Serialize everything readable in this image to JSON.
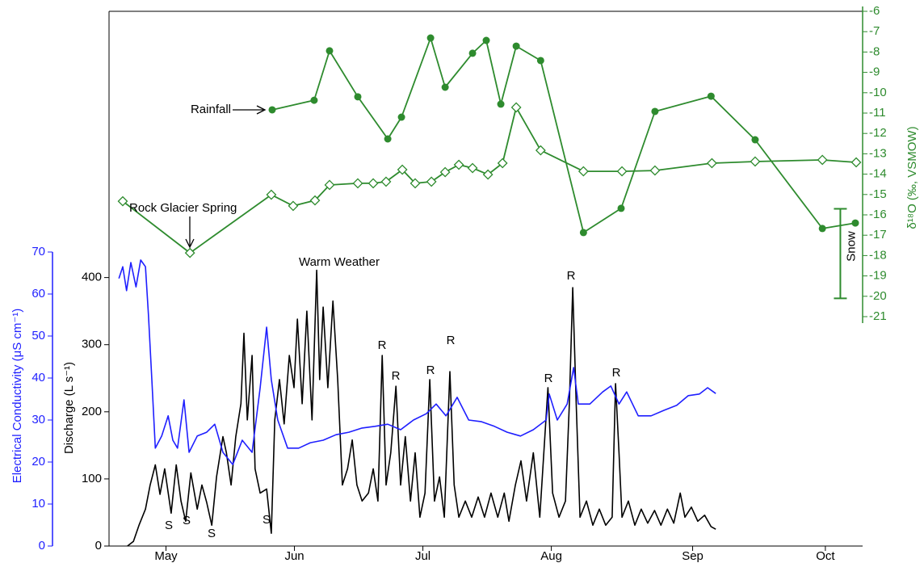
{
  "chart_data": {
    "type": "line",
    "xlim": [
      123.7,
      299.7
    ],
    "xticks": [
      {
        "value": 137,
        "label": "May"
      },
      {
        "value": 167,
        "label": "Jun"
      },
      {
        "value": 197,
        "label": "Jul"
      },
      {
        "value": 227,
        "label": "Aug"
      },
      {
        "value": 260,
        "label": "Sep"
      },
      {
        "value": 291,
        "label": "Oct"
      }
    ],
    "ylabel": "Discharge (L s⁻¹)",
    "ylim": [
      0,
      420
    ],
    "yticks": [
      0,
      100,
      200,
      300,
      400
    ],
    "y2label": "δ¹⁸O (‰, VSMOW)",
    "y2lim": [
      -21,
      -6
    ],
    "y2ticks": [
      -6,
      -7,
      -8,
      -9,
      -10,
      -11,
      -12,
      -13,
      -14,
      -15,
      -16,
      -17,
      -18,
      -19,
      -20,
      -21
    ],
    "y3label": "Electrical Conductivity (μS cm⁻¹)",
    "y3lim": [
      0,
      70
    ],
    "y3ticks": [
      0,
      10,
      20,
      30,
      40,
      50,
      60,
      70
    ],
    "series": [
      {
        "color": "#000000",
        "axis": "y",
        "x": [
          128.0,
          129.4,
          130.7,
          132.2,
          133.3,
          134.5,
          135.6,
          136.7,
          138.2,
          139.4,
          140.5,
          141.6,
          142.8,
          144.3,
          145.4,
          146.5,
          147.7,
          148.8,
          150.3,
          151.1,
          152.2,
          153.3,
          154.5,
          155.2,
          156.0,
          157.1,
          157.8,
          159.0,
          160.5,
          161.6,
          162.4,
          163.5,
          164.6,
          165.8,
          166.9,
          167.7,
          168.8,
          169.9,
          171.1,
          172.2,
          172.9,
          173.7,
          174.8,
          176.0,
          177.1,
          178.2,
          179.4,
          180.5,
          181.6,
          182.8,
          184.3,
          185.4,
          186.5,
          187.5,
          188.4,
          189.5,
          190.7,
          191.8,
          192.9,
          194.1,
          195.2,
          196.3,
          197.5,
          198.6,
          199.7,
          200.9,
          202.0,
          203.3,
          204.3,
          205.4,
          206.9,
          208.4,
          209.9,
          211.4,
          212.9,
          214.5,
          216.0,
          217.1,
          218.6,
          219.9,
          221.2,
          222.8,
          224.3,
          225.6,
          226.2,
          227.3,
          228.8,
          230.3,
          231.2,
          232.0,
          232.8,
          233.7,
          235.2,
          236.7,
          238.2,
          239.7,
          241.2,
          242.0,
          242.8,
          243.5,
          245.0,
          246.5,
          248.0,
          249.5,
          251.1,
          252.6,
          254.1,
          255.6,
          257.1,
          258.2,
          259.7,
          261.2,
          262.8,
          264.3,
          265.4
        ],
        "values": [
          0,
          7,
          31,
          55,
          91,
          121,
          77,
          115,
          49,
          121,
          67,
          37,
          109,
          55,
          91,
          65,
          31,
          103,
          163,
          139,
          91,
          163,
          212,
          317,
          188,
          284,
          115,
          79,
          85,
          19,
          188,
          248,
          182,
          284,
          236,
          338,
          212,
          350,
          188,
          411,
          248,
          356,
          236,
          365,
          248,
          91,
          115,
          158,
          91,
          67,
          79,
          115,
          67,
          284,
          91,
          139,
          238,
          91,
          163,
          67,
          139,
          43,
          79,
          248,
          67,
          103,
          43,
          260,
          91,
          43,
          67,
          43,
          73,
          43,
          79,
          43,
          79,
          37,
          91,
          127,
          67,
          139,
          43,
          175,
          236,
          79,
          43,
          67,
          212,
          385,
          212,
          43,
          67,
          31,
          55,
          31,
          43,
          242,
          139,
          43,
          67,
          31,
          55,
          34,
          53,
          31,
          55,
          34,
          79,
          43,
          58,
          37,
          46,
          29,
          25
        ]
      },
      {
        "color": "#1f1fff",
        "axis": "y3",
        "x": [
          126.0,
          126.9,
          127.8,
          128.8,
          130.0,
          131.1,
          132.2,
          132.9,
          133.7,
          134.5,
          136.0,
          137.5,
          138.6,
          139.7,
          141.2,
          142.4,
          144.3,
          146.5,
          148.4,
          150.3,
          152.6,
          154.8,
          157.1,
          159.0,
          160.5,
          161.6,
          163.1,
          165.4,
          168.0,
          170.7,
          173.7,
          176.7,
          179.7,
          182.8,
          185.8,
          188.8,
          191.8,
          194.8,
          197.8,
          200.1,
          202.4,
          205.0,
          207.7,
          210.7,
          213.7,
          216.7,
          219.8,
          222.8,
          225.8,
          226.5,
          228.4,
          230.7,
          232.2,
          233.3,
          236.0,
          239.0,
          240.9,
          242.8,
          244.6,
          247.3,
          250.3,
          253.3,
          256.3,
          259.0,
          261.6,
          263.5,
          265.4
        ],
        "values": [
          63.7,
          66.5,
          60.8,
          67.5,
          61.7,
          68.1,
          66.5,
          55.0,
          39.6,
          23.3,
          26.2,
          31.0,
          25.2,
          23.3,
          34.8,
          22.3,
          26.2,
          27.1,
          29.0,
          22.3,
          19.4,
          25.2,
          22.3,
          37.7,
          52.1,
          39.6,
          30.0,
          23.3,
          23.3,
          24.6,
          25.2,
          26.5,
          27.1,
          28.1,
          28.5,
          29.0,
          27.7,
          30.0,
          31.5,
          33.8,
          31.0,
          35.4,
          30.0,
          29.6,
          28.5,
          27.1,
          26.2,
          27.7,
          30.0,
          36.2,
          30.0,
          33.8,
          42.5,
          33.8,
          33.8,
          36.7,
          38.1,
          33.8,
          36.7,
          31.0,
          31.0,
          32.3,
          33.5,
          35.8,
          36.2,
          37.7,
          36.3
        ]
      },
      {
        "name": "Rainfall",
        "color": "#2e8b2e",
        "axis": "y2",
        "marker": "circle",
        "x": [
          161.8,
          171.6,
          175.2,
          181.8,
          188.8,
          192.0,
          198.8,
          202.2,
          208.6,
          211.8,
          215.2,
          218.8,
          224.5,
          234.5,
          243.3,
          251.2,
          264.3,
          274.6,
          290.3,
          298.0
        ],
        "values": [
          -10.84,
          -10.37,
          -7.94,
          -10.2,
          -12.27,
          -11.2,
          -7.31,
          -9.73,
          -8.06,
          -7.43,
          -10.56,
          -7.71,
          -8.42,
          -16.87,
          -15.68,
          -10.92,
          -10.17,
          -12.31,
          -16.67,
          -16.4
        ]
      },
      {
        "name": "Rock Glacier Spring",
        "color": "#2e8b2e",
        "axis": "y2",
        "marker": "diamond",
        "x": [
          126.9,
          142.6,
          161.6,
          166.7,
          171.8,
          175.2,
          181.8,
          185.4,
          188.4,
          192.2,
          195.2,
          199.0,
          202.2,
          205.4,
          208.6,
          212.2,
          215.6,
          218.8,
          224.5,
          234.5,
          243.5,
          251.2,
          264.5,
          274.6,
          290.3,
          298.2
        ],
        "values": [
          -15.33,
          -17.87,
          -15.01,
          -15.56,
          -15.29,
          -14.53,
          -14.45,
          -14.45,
          -14.37,
          -13.78,
          -14.45,
          -14.37,
          -13.9,
          -13.54,
          -13.7,
          -14.02,
          -13.46,
          -10.72,
          -12.83,
          -13.86,
          -13.86,
          -13.82,
          -13.46,
          -13.38,
          -13.3,
          -13.42
        ]
      }
    ],
    "snow": {
      "label": "Snow",
      "x": 294.5,
      "low": -20.1,
      "high": -15.7
    },
    "annotations": [
      "Warm Weather",
      "S",
      "S",
      "S",
      "S",
      "R",
      "R",
      "R",
      "R",
      "R",
      "R",
      "R"
    ]
  }
}
